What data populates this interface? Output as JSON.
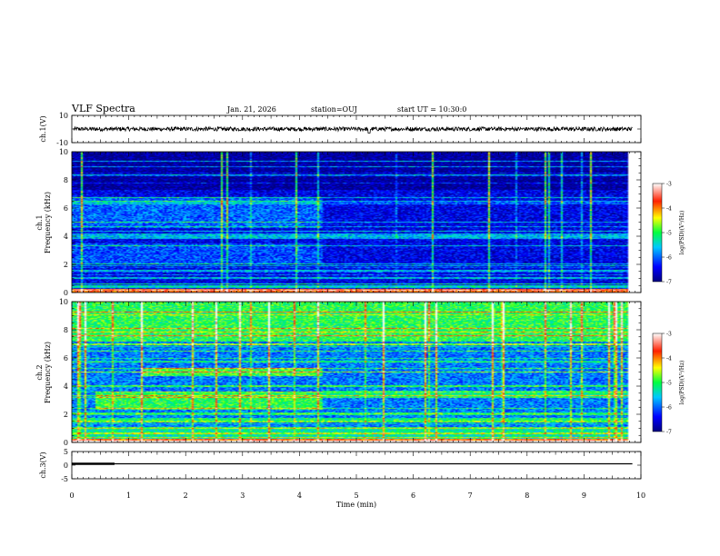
{
  "header": {
    "title": "VLF Spectra",
    "date": "Jan. 21, 2026",
    "station": "station=OUJ",
    "start": "start UT =  10:30:0"
  },
  "chart_data": [
    {
      "type": "line",
      "panel": "ch1-waveform",
      "ylabel": "ch.1(V)",
      "ylim": [
        -10,
        10
      ],
      "yticks": [
        "10",
        "-10"
      ],
      "xlim": [
        0,
        10
      ],
      "series": [
        {
          "description": "noisy waveform centered near 0 V",
          "level": 0,
          "amplitude": 1.5
        }
      ]
    },
    {
      "type": "heatmap",
      "panel": "ch1-spectrogram",
      "ylabel": "ch.1\nFrequency (kHz)",
      "ylim": [
        0,
        10
      ],
      "yticks": [
        "0",
        "2",
        "4",
        "6",
        "8",
        "10"
      ],
      "xlim": [
        0,
        10
      ],
      "colorbar": {
        "label": "log(PSD)(V²/Hz)",
        "range": [
          -7,
          -3
        ],
        "ticks": [
          "-3",
          "-4",
          "-5",
          "-6",
          "-7"
        ]
      },
      "base_level": -6.5,
      "enhanced_bands": [
        {
          "f_min": 4.6,
          "f_max": 6.8,
          "t_min": 0,
          "t_max": 4.4,
          "level": -6.0
        },
        {
          "f_min": 2.0,
          "f_max": 3.5,
          "t_min": 0,
          "t_max": 4.4,
          "level": -6.1
        }
      ],
      "data_end_min": 9.8
    },
    {
      "type": "heatmap",
      "panel": "ch2-spectrogram",
      "ylabel": "ch.2\nFrequency (kHz)",
      "ylim": [
        0,
        10
      ],
      "yticks": [
        "0",
        "2",
        "4",
        "6",
        "8",
        "10"
      ],
      "xlim": [
        0,
        10
      ],
      "colorbar": {
        "label": "log(PSD)(V²/Hz)",
        "range": [
          -7,
          -3
        ],
        "ticks": [
          "-3",
          "-4",
          "-5",
          "-6",
          "-7"
        ]
      },
      "base_level": -5.9,
      "enhanced_bands": [
        {
          "f_min": 4.7,
          "f_max": 5.3,
          "t_min": 1.2,
          "t_max": 4.4,
          "level": -4.9
        },
        {
          "f_min": 2.3,
          "f_max": 3.6,
          "t_min": 0.4,
          "t_max": 4.4,
          "level": -5.0
        },
        {
          "f_min": 3.2,
          "f_max": 3.7,
          "t_min": 4.4,
          "t_max": 9.8,
          "level": -5.2
        },
        {
          "f_min": 7.2,
          "f_max": 10.0,
          "t_min": 0,
          "t_max": 9.8,
          "level": -5.0
        }
      ],
      "data_end_min": 9.8
    },
    {
      "type": "line",
      "panel": "ch3-waveform",
      "ylabel": "ch.3(V)",
      "xlabel": "Time (min)",
      "ylim": [
        -5,
        5
      ],
      "yticks": [
        "5",
        "0",
        "-5"
      ],
      "xlim": [
        0,
        10
      ],
      "xticks": [
        "0",
        "1",
        "2",
        "3",
        "4",
        "5",
        "6",
        "7",
        "8",
        "9",
        "10"
      ],
      "series": [
        {
          "description": "flat trace",
          "level": 0.5
        }
      ]
    }
  ]
}
